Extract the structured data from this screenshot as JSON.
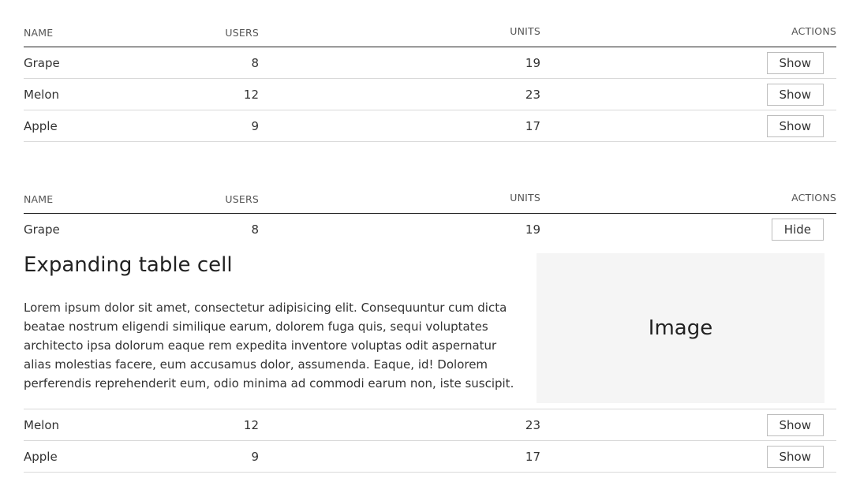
{
  "columns": {
    "name": "NAME",
    "users": "USERS",
    "units": "UNITS",
    "actions": "ACTIONS"
  },
  "table1": {
    "rows": [
      {
        "name": "Grape",
        "users": "8",
        "units": "19",
        "action": "Show"
      },
      {
        "name": "Melon",
        "users": "12",
        "units": "23",
        "action": "Show"
      },
      {
        "name": "Apple",
        "users": "9",
        "units": "17",
        "action": "Show"
      }
    ]
  },
  "table2": {
    "rows": [
      {
        "name": "Grape",
        "users": "8",
        "units": "19",
        "action": "Hide"
      },
      {
        "name": "Melon",
        "users": "12",
        "units": "23",
        "action": "Show"
      },
      {
        "name": "Apple",
        "users": "9",
        "units": "17",
        "action": "Show"
      }
    ],
    "expanded": {
      "title": "Expanding table cell",
      "text": "Lorem ipsum dolor sit amet, consectetur adipisicing elit. Consequuntur cum dicta beatae nostrum eligendi similique earum, dolorem fuga quis, sequi voluptates architecto ipsa dolorum eaque rem expedita inventore voluptas odit aspernatur alias molestias facere, eum accusamus dolor, assumenda. Eaque, id! Dolorem perferendis reprehenderit eum, odio minima ad commodi earum non, iste suscipit.",
      "image_label": "Image"
    }
  }
}
